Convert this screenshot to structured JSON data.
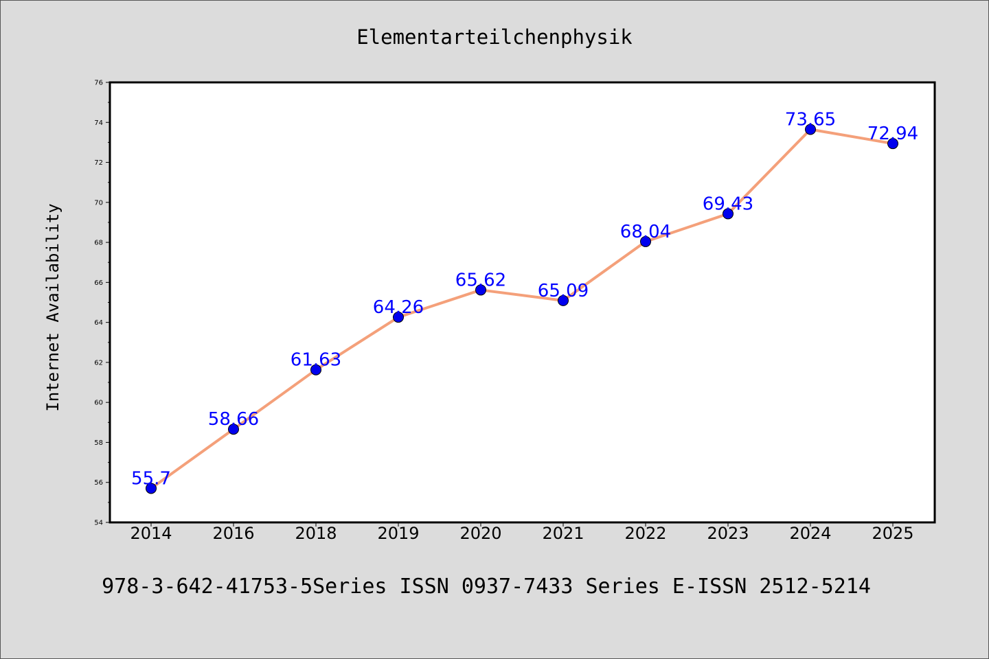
{
  "chart_data": {
    "type": "line",
    "title": "Elementarteilchenphysik",
    "xlabel": "",
    "ylabel": "Internet Availability",
    "categories": [
      "2014",
      "2016",
      "2018",
      "2019",
      "2020",
      "2021",
      "2022",
      "2023",
      "2024",
      "2025"
    ],
    "series": [
      {
        "values": [
          55.7,
          58.66,
          61.63,
          64.26,
          65.62,
          65.09,
          68.04,
          69.43,
          73.65,
          72.94
        ],
        "data_labels": [
          "55.7",
          "58.66",
          "61.63",
          "64.26",
          "65.62",
          "65.09",
          "68.04",
          "69.43",
          "73.65",
          "72.94"
        ],
        "line_color": "#f4a07a",
        "marker_color": "#0000ee",
        "label_color": "#0000ff"
      }
    ],
    "ylim": [
      54,
      76
    ],
    "yticks": [
      "54",
      "56",
      "58",
      "60",
      "62",
      "64",
      "66",
      "68",
      "70",
      "72",
      "74",
      "76"
    ],
    "grid": false,
    "legend": "none"
  },
  "caption": "978-3-642-41753-5Series ISSN 0937-7433 Series E-ISSN 2512-5214",
  "colors": {
    "background": "#dcdcdc",
    "plot_background": "#ffffff",
    "frame": "#000000"
  }
}
